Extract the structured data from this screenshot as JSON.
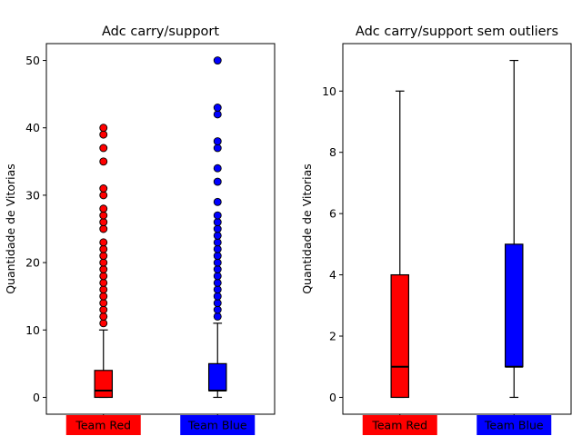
{
  "chart_data": [
    {
      "type": "box",
      "title": "Adc carry/support",
      "ylabel": "Quantidade de Vitorias",
      "ylim": [
        -2.5,
        52.5
      ],
      "yticks": [
        0,
        10,
        20,
        30,
        40,
        50
      ],
      "categories": [
        "Team Red",
        "Team Blue"
      ],
      "colors": [
        "#ff0000",
        "#0000ff"
      ],
      "boxes": [
        {
          "name": "Team Red",
          "whisker_low": 0,
          "q1": 0,
          "median": 1,
          "q3": 4,
          "whisker_high": 10,
          "fliers": [
            11,
            12,
            13,
            14,
            15,
            16,
            17,
            18,
            19,
            20,
            21,
            22,
            23,
            25,
            26,
            27,
            28,
            30,
            31,
            35,
            37,
            39,
            40
          ]
        },
        {
          "name": "Team Blue",
          "whisker_low": 0,
          "q1": 1,
          "median": 1,
          "q3": 5,
          "whisker_high": 11,
          "fliers": [
            12,
            13,
            14,
            15,
            16,
            17,
            18,
            19,
            20,
            21,
            22,
            23,
            24,
            25,
            26,
            27,
            29,
            32,
            34,
            37,
            38,
            42,
            43,
            50
          ]
        }
      ]
    },
    {
      "type": "box",
      "title": "Adc carry/support sem outliers",
      "ylabel": "Quantidade de Vitorias",
      "ylim": [
        -0.55,
        11.55
      ],
      "yticks": [
        0,
        2,
        4,
        6,
        8,
        10
      ],
      "categories": [
        "Team Red",
        "Team Blue"
      ],
      "colors": [
        "#ff0000",
        "#0000ff"
      ],
      "boxes": [
        {
          "name": "Team Red",
          "whisker_low": 0,
          "q1": 0,
          "median": 1,
          "q3": 4,
          "whisker_high": 10,
          "fliers": []
        },
        {
          "name": "Team Blue",
          "whisker_low": 0,
          "q1": 1,
          "median": 1,
          "q3": 5,
          "whisker_high": 11,
          "fliers": []
        }
      ]
    }
  ]
}
